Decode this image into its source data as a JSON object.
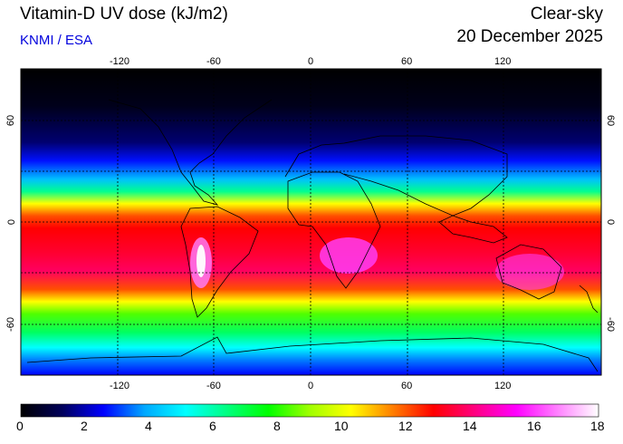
{
  "header": {
    "title": "Vitamin-D UV dose (kJ/m2)",
    "source": "KNMI / ESA",
    "mode": "Clear-sky",
    "date": "20 December 2025"
  },
  "map": {
    "lon_ticks": [
      "-120",
      "-60",
      "0",
      "60",
      "120"
    ],
    "lat_ticks": [
      "60",
      "0",
      "-60"
    ],
    "lon_range": [
      -180,
      180
    ],
    "lat_range": [
      -90,
      90
    ]
  },
  "colorbar": {
    "ticks": [
      "0",
      "2",
      "4",
      "6",
      "8",
      "10",
      "12",
      "14",
      "16",
      "18"
    ],
    "range": [
      0,
      18
    ],
    "colors": [
      "#000000",
      "#00005a",
      "#0000ff",
      "#00a8ff",
      "#00ffff",
      "#00ff80",
      "#00ff00",
      "#a0ff00",
      "#ffff00",
      "#ff8000",
      "#ff0000",
      "#ff0080",
      "#ff00ff",
      "#ff80ff",
      "#ffffff"
    ]
  }
}
